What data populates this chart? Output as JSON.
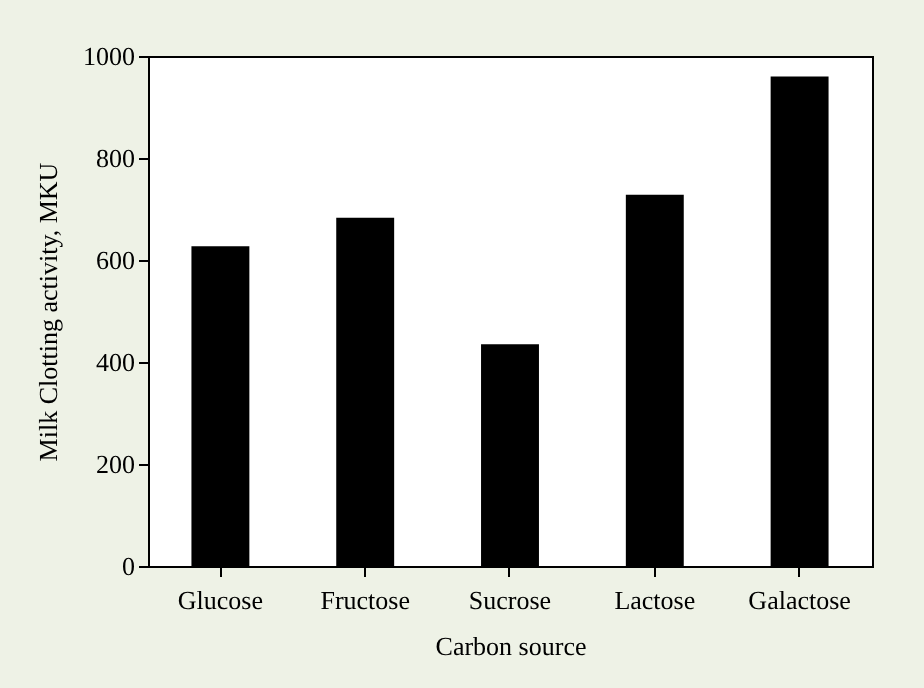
{
  "chart_data": {
    "type": "bar",
    "xlabel": "Carbon source",
    "ylabel": "Milk Clotting activity, MKU",
    "categories": [
      "Glucose",
      "Fructose",
      "Sucrose",
      "Lactose",
      "Galactose"
    ],
    "values": [
      627,
      683,
      435,
      728,
      960
    ],
    "color": "#000000",
    "ylim": [
      0,
      1000
    ],
    "yticks": [
      0,
      200,
      400,
      600,
      800,
      1000
    ],
    "grid": false
  }
}
